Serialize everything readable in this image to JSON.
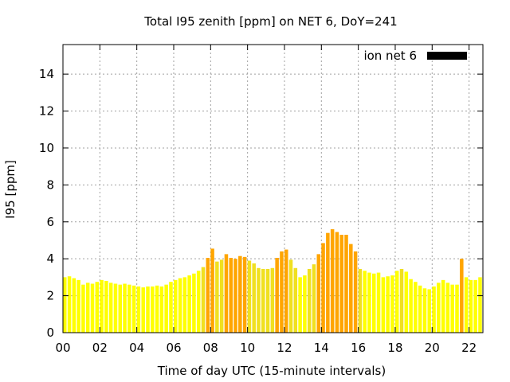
{
  "chart_data": {
    "type": "bar",
    "title": "Total I95 zenith [ppm] on NET 6, DoY=241",
    "xlabel": "Time of day UTC (15-minute intervals)",
    "ylabel": "I95 [ppm]",
    "xlim": [
      0,
      22.75
    ],
    "ylim": [
      0,
      15.6
    ],
    "x_ticks": [
      "00",
      "02",
      "04",
      "06",
      "08",
      "10",
      "12",
      "14",
      "16",
      "18",
      "20",
      "22"
    ],
    "y_ticks": [
      "0",
      "2",
      "4",
      "6",
      "8",
      "10",
      "12",
      "14"
    ],
    "grid": true,
    "legend": {
      "label": "ion net 6",
      "color": "#000000",
      "position": "top-right"
    },
    "colors": {
      "low": "#ffff00",
      "mid": "#f0e020",
      "high": "#ffa500"
    },
    "interval_hours": 0.25,
    "values": [
      3.0,
      3.05,
      2.95,
      2.85,
      2.6,
      2.7,
      2.65,
      2.75,
      2.85,
      2.8,
      2.7,
      2.65,
      2.6,
      2.65,
      2.6,
      2.55,
      2.5,
      2.45,
      2.5,
      2.5,
      2.55,
      2.5,
      2.6,
      2.75,
      2.85,
      2.95,
      3.0,
      3.1,
      3.2,
      3.35,
      3.55,
      4.05,
      4.55,
      3.85,
      3.95,
      4.25,
      4.05,
      4.0,
      4.15,
      4.1,
      3.9,
      3.75,
      3.5,
      3.45,
      3.45,
      3.5,
      4.05,
      4.4,
      4.5,
      3.95,
      3.5,
      3.0,
      3.1,
      3.45,
      3.7,
      4.25,
      4.85,
      5.4,
      5.6,
      5.45,
      5.3,
      5.3,
      4.8,
      4.4,
      3.45,
      3.35,
      3.25,
      3.2,
      3.25,
      3.0,
      3.05,
      3.1,
      3.35,
      3.45,
      3.3,
      2.9,
      2.75,
      2.55,
      2.4,
      2.35,
      2.5,
      2.7,
      2.85,
      2.7,
      2.6,
      2.6,
      4.0,
      3.0,
      2.85,
      2.85,
      3.0,
      3.05,
      3.2
    ]
  }
}
